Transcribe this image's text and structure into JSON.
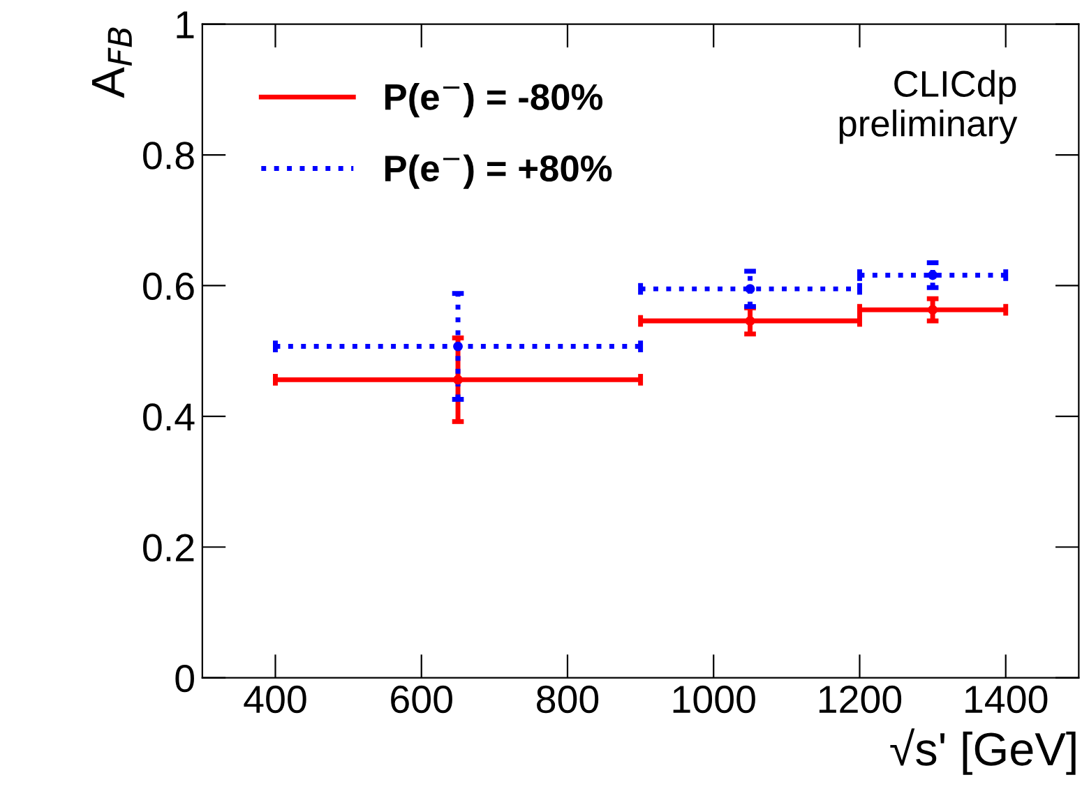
{
  "chart_data": {
    "type": "scatter",
    "xlabel": "√s' [GeV]",
    "ylabel": "A$_{FB}$",
    "xlim": [
      300,
      1500
    ],
    "xticks": [
      400,
      600,
      800,
      1000,
      1200,
      1400
    ],
    "ylim": [
      0,
      1
    ],
    "yticks": [
      0,
      0.2,
      0.4,
      0.6,
      0.8,
      1
    ],
    "marker": "circle",
    "legend": "top left",
    "grid": false,
    "annotations": [
      "CLICdp\npreliminary"
    ],
    "series": [
      {
        "name": "P(e$^{−}$) = -80%",
        "color": "#ff0000",
        "line_style": "solid",
        "x": [
          650,
          1050,
          1300
        ],
        "values": [
          0.456,
          0.546,
          0.563
        ],
        "xerrors": [
          250,
          150,
          100
        ],
        "errors": [
          0.064,
          0.02,
          0.017
        ]
      },
      {
        "name": "P(e$^{−}$) = +80%",
        "color": "#0000ff",
        "line_style": "dotted",
        "x": [
          650,
          1050,
          1300
        ],
        "values": [
          0.507,
          0.595,
          0.616
        ],
        "xerrors": [
          250,
          150,
          100
        ],
        "errors": [
          0.081,
          0.027,
          0.019
        ]
      }
    ]
  }
}
